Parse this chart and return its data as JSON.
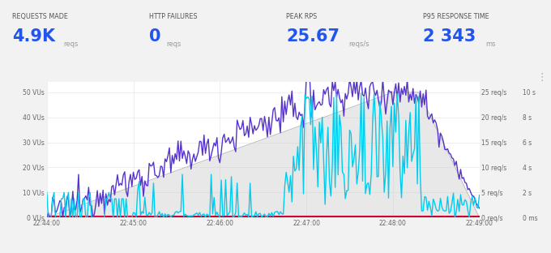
{
  "stats": [
    {
      "label": "REQUESTS MADE",
      "value": "4.9K",
      "unit": "reqs"
    },
    {
      "label": "HTTP FAILURES",
      "value": "0",
      "unit": "reqs"
    },
    {
      "label": "PEAK RPS",
      "value": "25.67",
      "unit": "reqs/s"
    },
    {
      "label": "P95 RESPONSE TIME",
      "value": "2 343",
      "unit": "ms"
    }
  ],
  "blue_value_color": "#2255ee",
  "xtick_labels": [
    "22:44:00",
    "22:45:00",
    "22:46:00",
    "22:47:00",
    "22:48:00",
    "22:49:00"
  ],
  "left_ylabels": [
    "0 VUs",
    "10 VUs",
    "20 VUs",
    "30 VUs",
    "40 VUs",
    "50 VUs"
  ],
  "right_ylabels_rps": [
    "0 req/s",
    "5 req/s",
    "10 req/s",
    "15 req/s",
    "20 req/s",
    "25 req/s"
  ],
  "right_ylabels_s": [
    "0 ms",
    "2 s",
    "4 s",
    "6 s",
    "8 s",
    "10 s"
  ],
  "request_rate_color": "#5533cc",
  "response_time_color": "#00ccee",
  "failure_rate_color": "#cc0033",
  "vu_fill_color": "#cccccc",
  "vu_line_color": "#bbbbbb"
}
